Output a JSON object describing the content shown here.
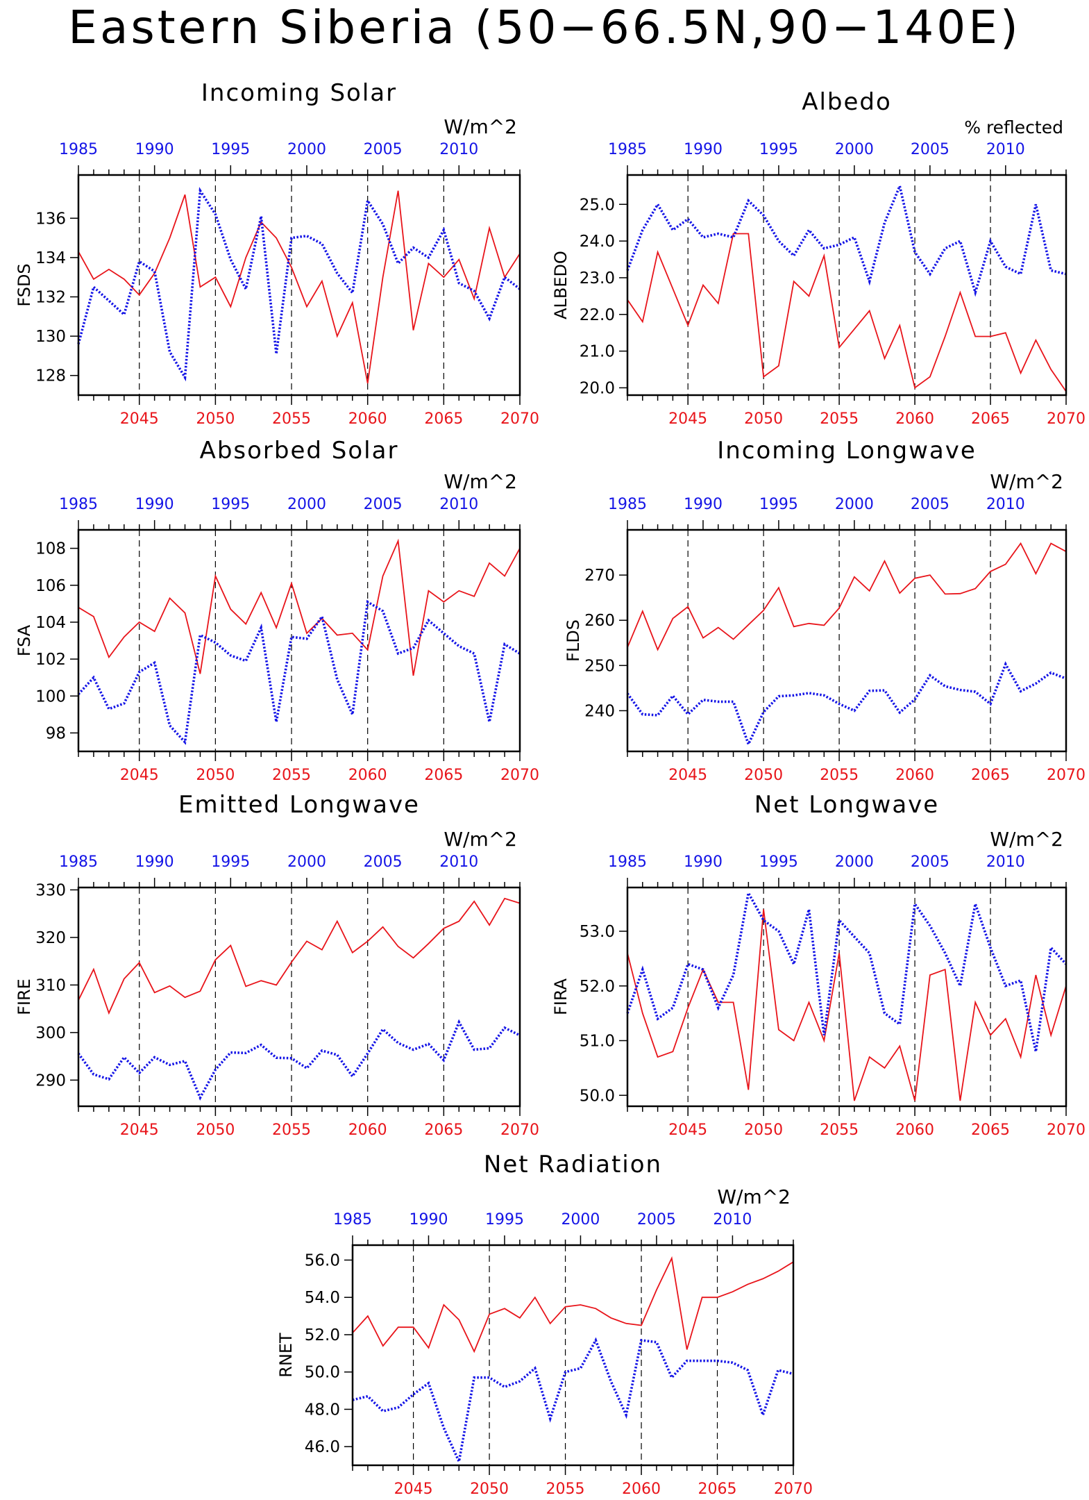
{
  "main_title": "Eastern Siberia (50−66.5N,90−140E)",
  "colors": {
    "future": "#e8141a",
    "past": "#1414e6",
    "axis": "#000000"
  },
  "chart_data": [
    {
      "type": "line",
      "title": "Incoming Solar",
      "units": "W/m^2",
      "ylabel": "FSDS",
      "ylim": [
        127,
        138.2
      ],
      "yticks": [
        128,
        130,
        132,
        134,
        136
      ],
      "ytick_labels": [
        "128",
        "130",
        "132",
        "134",
        "136"
      ],
      "x_bottom": {
        "range": [
          2041,
          2070
        ],
        "ticks": [
          "2045",
          "2050",
          "2055",
          "2060",
          "2065",
          "2070"
        ]
      },
      "x_top": {
        "range": [
          1985,
          2014
        ],
        "ticks": [
          "1985",
          "1990",
          "1995",
          "2000",
          "2005",
          "2010"
        ]
      },
      "series": [
        {
          "axis": "bottom",
          "start": 2041,
          "values": [
            134.3,
            132.9,
            133.4,
            132.9,
            132.1,
            133.2,
            135.0,
            137.2,
            132.5,
            133.0,
            131.5,
            134.0,
            135.8,
            135.0,
            133.5,
            131.5,
            132.8,
            130.0,
            131.7,
            127.6,
            133.0,
            137.4,
            130.3,
            133.7,
            133.0,
            133.9,
            131.9,
            135.5,
            133.0,
            134.2
          ]
        },
        {
          "axis": "top",
          "start": 1985,
          "values": [
            129.6,
            132.5,
            131.8,
            131.1,
            133.8,
            133.3,
            129.2,
            127.9,
            137.4,
            136.2,
            133.9,
            132.4,
            136.1,
            129.1,
            135.0,
            135.1,
            134.7,
            133.2,
            132.2,
            136.9,
            135.7,
            133.7,
            134.5,
            134.0,
            135.4,
            132.7,
            132.3,
            130.9,
            133.0,
            132.4
          ]
        }
      ]
    },
    {
      "type": "line",
      "title": "Albedo",
      "units": "% reflected",
      "ylabel": "ALBEDO",
      "ylim": [
        19.8,
        25.8
      ],
      "yticks": [
        20,
        21,
        22,
        23,
        24,
        25
      ],
      "ytick_labels": [
        "20.0",
        "21.0",
        "22.0",
        "23.0",
        "24.0",
        "25.0"
      ],
      "x_bottom": {
        "range": [
          2041,
          2070
        ],
        "ticks": [
          "2045",
          "2050",
          "2055",
          "2060",
          "2065",
          "2070"
        ]
      },
      "x_top": {
        "range": [
          1985,
          2014
        ],
        "ticks": [
          "1985",
          "1990",
          "1995",
          "2000",
          "2005",
          "2010"
        ]
      },
      "series": [
        {
          "axis": "bottom",
          "start": 2041,
          "values": [
            22.4,
            21.8,
            23.7,
            22.7,
            21.7,
            22.8,
            22.3,
            24.2,
            24.2,
            20.3,
            20.6,
            22.9,
            22.5,
            23.6,
            21.1,
            21.6,
            22.1,
            20.8,
            21.7,
            20.0,
            20.3,
            21.4,
            22.6,
            21.4,
            21.4,
            21.5,
            20.4,
            21.3,
            20.5,
            19.9
          ]
        },
        {
          "axis": "top",
          "start": 1985,
          "values": [
            23.2,
            24.3,
            25.0,
            24.3,
            24.6,
            24.1,
            24.2,
            24.1,
            25.1,
            24.7,
            24.0,
            23.6,
            24.3,
            23.8,
            23.9,
            24.1,
            22.9,
            24.5,
            25.5,
            23.7,
            23.1,
            23.8,
            24.0,
            22.6,
            24.0,
            23.3,
            23.1,
            25.0,
            23.2,
            23.1
          ]
        }
      ]
    },
    {
      "type": "line",
      "title": "Absorbed Solar",
      "units": "W/m^2",
      "ylabel": "FSA",
      "ylim": [
        97,
        109
      ],
      "yticks": [
        98,
        100,
        102,
        104,
        106,
        108
      ],
      "ytick_labels": [
        "98",
        "100",
        "102",
        "104",
        "106",
        "108"
      ],
      "x_bottom": {
        "range": [
          2041,
          2070
        ],
        "ticks": [
          "2045",
          "2050",
          "2055",
          "2060",
          "2065",
          "2070"
        ]
      },
      "x_top": {
        "range": [
          1985,
          2014
        ],
        "ticks": [
          "1985",
          "1990",
          "1995",
          "2000",
          "2005",
          "2010"
        ]
      },
      "series": [
        {
          "axis": "bottom",
          "start": 2041,
          "values": [
            104.8,
            104.3,
            102.1,
            103.2,
            104.0,
            103.5,
            105.3,
            104.5,
            101.2,
            106.5,
            104.7,
            103.9,
            105.6,
            103.7,
            106.1,
            103.4,
            104.2,
            103.3,
            103.4,
            102.5,
            106.5,
            108.4,
            101.1,
            105.7,
            105.1,
            105.7,
            105.4,
            107.2,
            106.5,
            108.0
          ]
        },
        {
          "axis": "top",
          "start": 1985,
          "values": [
            100.1,
            101.0,
            99.3,
            99.6,
            101.3,
            101.8,
            98.4,
            97.5,
            103.3,
            102.9,
            102.2,
            101.9,
            103.7,
            98.6,
            103.2,
            103.1,
            104.3,
            100.9,
            99.0,
            105.1,
            104.6,
            102.3,
            102.6,
            104.1,
            103.4,
            102.7,
            102.3,
            98.6,
            102.8,
            102.3
          ]
        }
      ]
    },
    {
      "type": "line",
      "title": "Incoming Longwave",
      "units": "W/m^2",
      "ylabel": "FLDS",
      "ylim": [
        231,
        280
      ],
      "yticks": [
        240,
        250,
        260,
        270
      ],
      "ytick_labels": [
        "240",
        "250",
        "260",
        "270"
      ],
      "x_bottom": {
        "range": [
          2041,
          2070
        ],
        "ticks": [
          "2045",
          "2050",
          "2055",
          "2060",
          "2065",
          "2070"
        ]
      },
      "x_top": {
        "range": [
          1985,
          2014
        ],
        "ticks": [
          "1985",
          "1990",
          "1995",
          "2000",
          "2005",
          "2010"
        ]
      },
      "series": [
        {
          "axis": "bottom",
          "start": 2041,
          "values": [
            254.0,
            262.0,
            253.5,
            260.4,
            263.0,
            256.1,
            258.4,
            255.8,
            259.0,
            262.2,
            267.2,
            258.6,
            259.3,
            258.9,
            262.7,
            269.6,
            266.5,
            273.1,
            266.0,
            269.3,
            270.0,
            265.8,
            265.9,
            267.0,
            270.8,
            272.4,
            277.0,
            270.3,
            277.0,
            275.2
          ]
        },
        {
          "axis": "top",
          "start": 1985,
          "values": [
            243.8,
            239.2,
            239.0,
            243.3,
            239.2,
            242.4,
            242.0,
            242.0,
            232.6,
            239.7,
            243.2,
            243.4,
            243.9,
            243.4,
            241.5,
            240.0,
            244.4,
            244.5,
            239.6,
            242.5,
            247.8,
            245.4,
            244.6,
            244.2,
            241.5,
            250.3,
            244.3,
            246.0,
            248.4,
            247.1
          ]
        }
      ]
    },
    {
      "type": "line",
      "title": "Emitted Longwave",
      "units": "W/m^2",
      "ylabel": "FIRE",
      "ylim": [
        284.5,
        330.5
      ],
      "yticks": [
        290,
        300,
        310,
        320,
        330
      ],
      "ytick_labels": [
        "290",
        "300",
        "310",
        "320",
        "330"
      ],
      "x_bottom": {
        "range": [
          2041,
          2070
        ],
        "ticks": [
          "2045",
          "2050",
          "2055",
          "2060",
          "2065",
          "2070"
        ]
      },
      "x_top": {
        "range": [
          1985,
          2014
        ],
        "ticks": [
          "1985",
          "1990",
          "1995",
          "2000",
          "2005",
          "2010"
        ]
      },
      "series": [
        {
          "axis": "bottom",
          "start": 2041,
          "values": [
            306.8,
            313.3,
            304.1,
            311.3,
            314.7,
            308.4,
            309.8,
            307.4,
            308.7,
            315.3,
            318.3,
            309.7,
            310.9,
            310.0,
            314.8,
            319.2,
            317.4,
            323.4,
            316.8,
            319.2,
            322.2,
            318.1,
            315.7,
            318.7,
            321.9,
            323.4,
            327.6,
            322.6,
            328.2,
            327.2
          ]
        },
        {
          "axis": "top",
          "start": 1985,
          "values": [
            295.6,
            291.2,
            290.2,
            294.8,
            291.5,
            294.8,
            293.2,
            294.0,
            286.3,
            292.2,
            295.8,
            295.7,
            297.4,
            294.7,
            294.6,
            292.5,
            296.2,
            295.3,
            290.8,
            295.6,
            300.7,
            297.8,
            296.4,
            297.6,
            294.2,
            302.2,
            296.4,
            296.7,
            301.0,
            299.4
          ]
        }
      ]
    },
    {
      "type": "line",
      "title": "Net Longwave",
      "units": "W/m^2",
      "ylabel": "FIRA",
      "ylim": [
        49.8,
        53.8
      ],
      "yticks": [
        50,
        51,
        52,
        53
      ],
      "ytick_labels": [
        "50.0",
        "51.0",
        "52.0",
        "53.0"
      ],
      "x_bottom": {
        "range": [
          2041,
          2070
        ],
        "ticks": [
          "2045",
          "2050",
          "2055",
          "2060",
          "2065",
          "2070"
        ]
      },
      "x_top": {
        "range": [
          1985,
          2014
        ],
        "ticks": [
          "1985",
          "1990",
          "1995",
          "2000",
          "2005",
          "2010"
        ]
      },
      "series": [
        {
          "axis": "bottom",
          "start": 2041,
          "values": [
            52.6,
            51.5,
            50.7,
            50.8,
            51.6,
            52.3,
            51.7,
            51.7,
            50.1,
            53.4,
            51.2,
            51.0,
            51.7,
            51.0,
            52.6,
            49.9,
            50.7,
            50.5,
            50.9,
            49.9,
            52.2,
            52.3,
            49.9,
            51.7,
            51.1,
            51.4,
            50.7,
            52.2,
            51.1,
            52.0
          ]
        },
        {
          "axis": "top",
          "start": 1985,
          "values": [
            51.5,
            52.3,
            51.4,
            51.6,
            52.4,
            52.3,
            51.6,
            52.2,
            53.7,
            53.2,
            53.0,
            52.4,
            53.4,
            51.1,
            53.2,
            52.9,
            52.6,
            51.5,
            51.3,
            53.5,
            53.1,
            52.6,
            52.0,
            53.5,
            52.7,
            52.0,
            52.1,
            50.8,
            52.7,
            52.4
          ]
        }
      ]
    },
    {
      "type": "line",
      "title": "Net Radiation",
      "units": "W/m^2",
      "ylabel": "RNET",
      "ylim": [
        45,
        56.8
      ],
      "yticks": [
        46,
        48,
        50,
        52,
        54,
        56
      ],
      "ytick_labels": [
        "46.0",
        "48.0",
        "50.0",
        "52.0",
        "54.0",
        "56.0"
      ],
      "x_bottom": {
        "range": [
          2041,
          2070
        ],
        "ticks": [
          "2045",
          "2050",
          "2055",
          "2060",
          "2065",
          "2070"
        ]
      },
      "x_top": {
        "range": [
          1985,
          2014
        ],
        "ticks": [
          "1985",
          "1990",
          "1995",
          "2000",
          "2005",
          "2010"
        ]
      },
      "series": [
        {
          "axis": "bottom",
          "start": 2041,
          "values": [
            52.1,
            53.0,
            51.4,
            52.4,
            52.4,
            51.3,
            53.6,
            52.8,
            51.1,
            53.1,
            53.4,
            52.9,
            54.0,
            52.6,
            53.5,
            53.6,
            53.4,
            52.9,
            52.6,
            52.5,
            54.4,
            56.1,
            51.2,
            54.0,
            54.0,
            54.3,
            54.7,
            55.0,
            55.4,
            55.9
          ]
        },
        {
          "axis": "top",
          "start": 1985,
          "values": [
            48.5,
            48.7,
            47.9,
            48.1,
            48.8,
            49.4,
            47.0,
            45.2,
            49.7,
            49.7,
            49.2,
            49.5,
            50.2,
            47.5,
            50.0,
            50.2,
            51.7,
            49.5,
            47.7,
            51.7,
            51.6,
            49.7,
            50.6,
            50.6,
            50.6,
            50.5,
            50.1,
            47.7,
            50.1,
            49.9
          ]
        }
      ]
    }
  ]
}
